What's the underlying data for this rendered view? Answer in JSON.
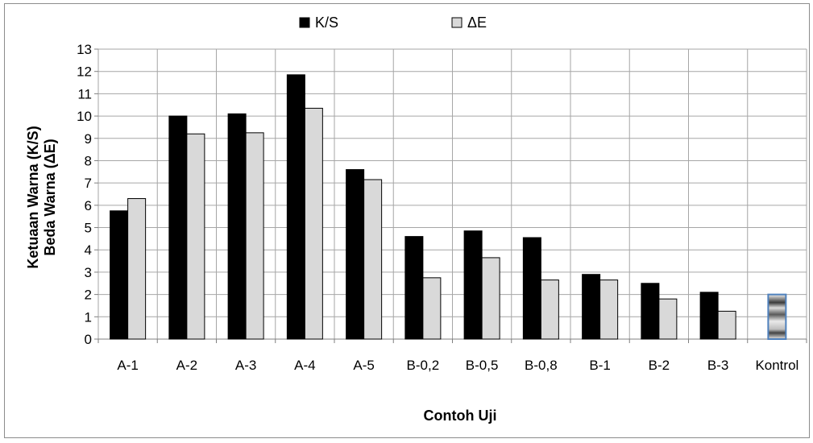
{
  "chart_data": {
    "type": "bar",
    "xlabel": "Contoh Uji",
    "ylabel": "Ketuaan Warna (K/S)",
    "ylabel2": "Beda Warna (ΔE)",
    "ylim": [
      0,
      13
    ],
    "yticks": [
      0,
      1,
      2,
      3,
      4,
      5,
      6,
      7,
      8,
      9,
      10,
      11,
      12,
      13
    ],
    "grid": true,
    "legend_position": "top",
    "categories": [
      "A-1",
      "A-2",
      "A-3",
      "A-4",
      "A-5",
      "B-0,2",
      "B-0,5",
      "B-0,8",
      "B-1",
      "B-2",
      "B-3",
      "Kontrol"
    ],
    "series": [
      {
        "name": "K/S",
        "color": "#000000",
        "values": [
          5.75,
          10.0,
          10.1,
          11.85,
          7.6,
          4.6,
          4.85,
          4.55,
          2.9,
          2.5,
          2.1,
          null
        ]
      },
      {
        "name": "ΔE",
        "color": "#d9d9d9",
        "values": [
          6.3,
          9.2,
          9.25,
          10.35,
          7.15,
          2.75,
          3.65,
          2.65,
          2.65,
          1.8,
          1.25,
          null
        ]
      }
    ],
    "control_image_value": 2.0
  }
}
